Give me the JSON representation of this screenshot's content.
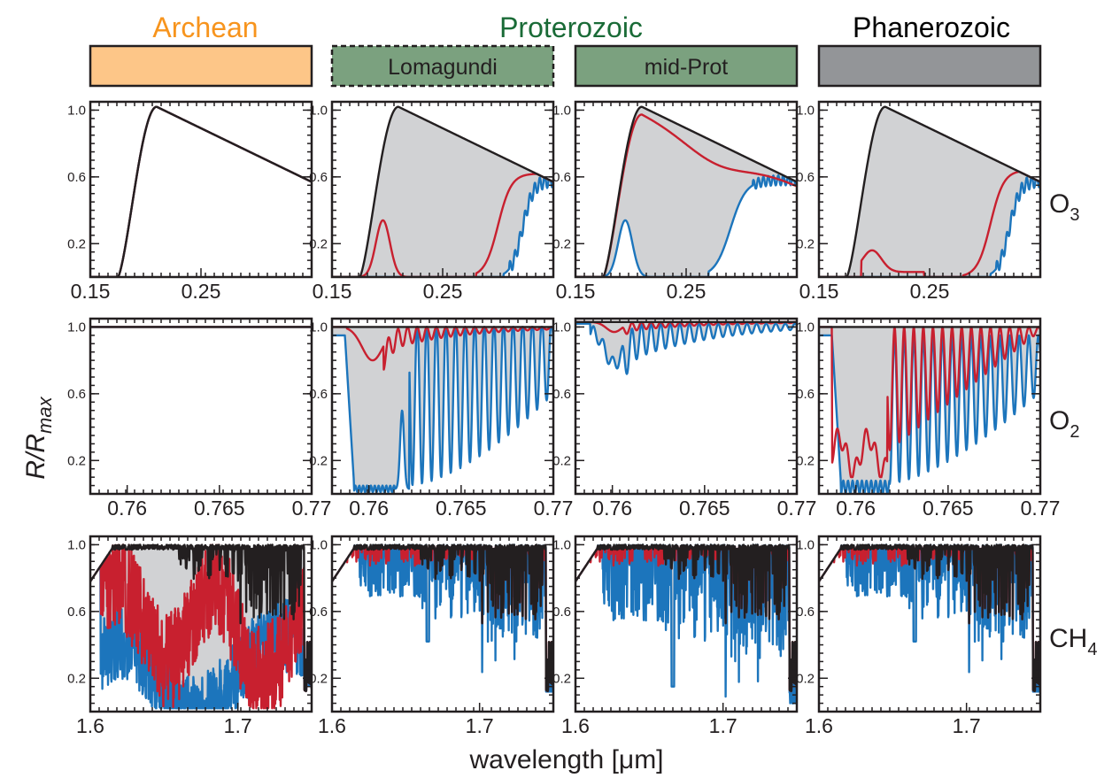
{
  "colors": {
    "archean": "#f7941d",
    "proterozoic": "#1a6b37",
    "phanerozoic": "#000000",
    "archean_box": "#fdc688",
    "proterozoic_box": "#7ba17f",
    "phanerozoic_box": "#939598",
    "fill_gray": "#d1d2d4",
    "reference_line": "#231f20",
    "red_line": "#c8202f",
    "blue_line": "#1c75bc"
  },
  "eons": [
    {
      "label": "Archean",
      "color": "#f7941d"
    },
    {
      "label": "Proterozoic",
      "color": "#1a6b37"
    },
    {
      "label": "Phanerozoic",
      "color": "#000000"
    }
  ],
  "boxes": [
    {
      "label": "",
      "fill": "#fdc688",
      "dashed": false
    },
    {
      "label": "Lomagundi",
      "fill": "#7ba17f",
      "dashed": true
    },
    {
      "label": "mid-Prot",
      "fill": "#7ba17f",
      "dashed": false
    },
    {
      "label": "",
      "fill": "#939598",
      "dashed": false
    }
  ],
  "y_axis_label": "R/R",
  "y_axis_label_sub": "max",
  "x_axis_label": "wavelength [μm]",
  "row_labels": [
    {
      "base": "O",
      "sub": "3"
    },
    {
      "base": "O",
      "sub": "2"
    },
    {
      "base": "CH",
      "sub": "4"
    }
  ],
  "chart_data": {
    "type": "line",
    "grid": false,
    "columns": [
      "Archean",
      "Lomagundi",
      "mid-Prot",
      "Phanerozoic"
    ],
    "y_ticks": [
      0.2,
      0.6,
      1.0
    ],
    "y_tick_labels": [
      "0.2",
      "0.6",
      "1.0"
    ],
    "ylim": [
      0,
      1.05
    ],
    "rows": [
      {
        "molecule": "O3",
        "xlim": [
          0.15,
          0.35
        ],
        "x_ticks": [
          0.15,
          0.25
        ],
        "x_tick_labels": [
          "0.15",
          "0.25"
        ]
      },
      {
        "molecule": "O2",
        "xlim": [
          0.758,
          0.77
        ],
        "x_ticks": [
          0.76,
          0.765,
          0.77
        ],
        "x_tick_labels": [
          "0.76",
          "0.765",
          "0.77"
        ]
      },
      {
        "molecule": "CH4",
        "xlim": [
          1.6,
          1.75
        ],
        "x_ticks": [
          1.6,
          1.7
        ],
        "x_tick_labels": [
          "1.6",
          "1.7"
        ]
      }
    ]
  }
}
